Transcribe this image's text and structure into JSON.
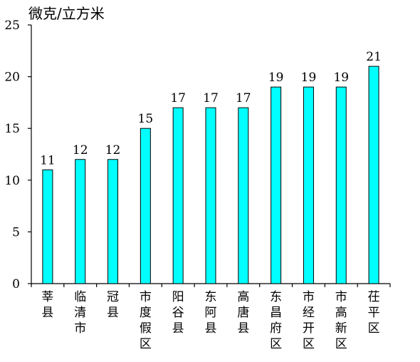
{
  "chart_data": {
    "type": "bar",
    "title": "",
    "xlabel": "",
    "ylabel": "微克/立方米",
    "ylim": [
      0,
      25
    ],
    "yticks": [
      0,
      5,
      10,
      15,
      20,
      25
    ],
    "grid": false,
    "categories": [
      "莘县",
      "临清市",
      "冠县",
      "市度假区",
      "阳谷县",
      "东阿县",
      "高唐县",
      "东昌府区",
      "市经开区",
      "市高新区",
      "茌平区"
    ],
    "values": [
      11,
      12,
      12,
      15,
      17,
      17,
      17,
      19,
      19,
      19,
      21
    ],
    "data_labels": [
      "11",
      "12",
      "12",
      "15",
      "17",
      "17",
      "17",
      "19",
      "19",
      "19",
      "21"
    ],
    "colors": {
      "bar_fill": "#00FFFF",
      "bar_stroke": "#000000",
      "axis": "#000000"
    }
  }
}
